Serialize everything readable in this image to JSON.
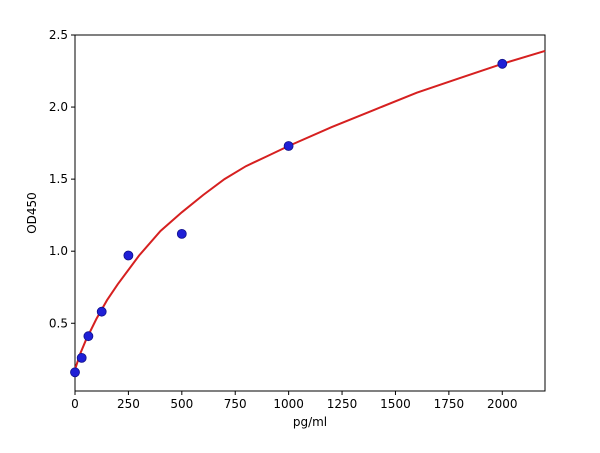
{
  "chart_data": {
    "type": "scatter",
    "title": "",
    "xlabel": "pg/ml",
    "ylabel": "OD450",
    "xlim": [
      0,
      2200
    ],
    "ylim": [
      0.03,
      2.5
    ],
    "xticks": [
      0,
      250,
      500,
      750,
      1000,
      1250,
      1500,
      1750,
      2000
    ],
    "xtick_labels": [
      "0",
      "250",
      "500",
      "750",
      "1000",
      "1250",
      "1500",
      "1750",
      "2000"
    ],
    "yticks": [
      0.5,
      1.0,
      1.5,
      2.0,
      2.5
    ],
    "ytick_labels": [
      "0.5",
      "1.0",
      "1.5",
      "2.0",
      "2.5"
    ],
    "grid": false,
    "series": [
      {
        "kind": "points",
        "color": "#1f1fd6",
        "x": [
          0,
          31.25,
          62.5,
          125,
          250,
          500,
          1000,
          2000
        ],
        "y": [
          0.16,
          0.26,
          0.41,
          0.58,
          0.97,
          1.12,
          1.73,
          2.3
        ]
      },
      {
        "kind": "fitted-curve",
        "color": "#d62020",
        "x": [
          0,
          25,
          50,
          100,
          150,
          200,
          300,
          400,
          500,
          600,
          700,
          800,
          900,
          1000,
          1200,
          1400,
          1600,
          1800,
          2000,
          2200
        ],
        "y": [
          0.18,
          0.29,
          0.38,
          0.53,
          0.66,
          0.77,
          0.97,
          1.14,
          1.27,
          1.39,
          1.5,
          1.59,
          1.66,
          1.73,
          1.86,
          1.98,
          2.1,
          2.2,
          2.3,
          2.39
        ]
      }
    ]
  }
}
